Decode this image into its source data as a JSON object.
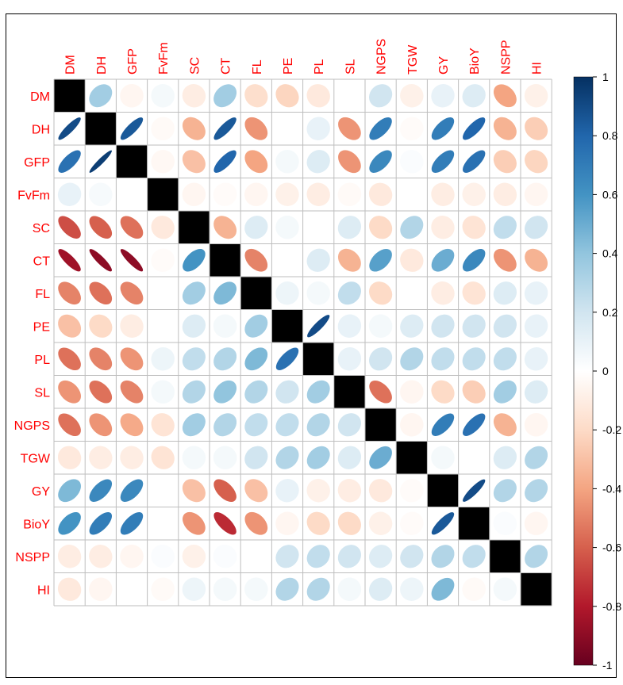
{
  "chart_data": {
    "type": "heatmap",
    "variables": [
      "DM",
      "DH",
      "GFP",
      "FvFm",
      "SC",
      "CT",
      "FL",
      "PE",
      "PL",
      "SL",
      "NGPS",
      "TGW",
      "GY",
      "BioY",
      "NSPP",
      "HI"
    ],
    "matrix": [
      [
        1,
        0.35,
        -0.05,
        0.05,
        -0.1,
        0.35,
        -0.18,
        -0.22,
        -0.12,
        0,
        0.2,
        -0.08,
        0.1,
        0.15,
        -0.4,
        -0.08
      ],
      [
        0.9,
        1,
        0.85,
        -0.03,
        -0.35,
        0.85,
        -0.45,
        0,
        0.1,
        -0.45,
        0.7,
        -0.02,
        0.7,
        0.8,
        -0.35,
        -0.25
      ],
      [
        0.75,
        0.95,
        1,
        -0.04,
        -0.3,
        0.8,
        -0.4,
        0.05,
        0.15,
        -0.45,
        0.65,
        0.02,
        0.7,
        0.75,
        -0.25,
        -0.22
      ],
      [
        0.1,
        0.04,
        0,
        1,
        -0.05,
        -0.02,
        -0.05,
        -0.08,
        -0.1,
        -0.03,
        -0.12,
        0,
        -0.1,
        -0.08,
        -0.1,
        -0.05
      ],
      [
        -0.65,
        -0.6,
        -0.55,
        -0.12,
        1,
        -0.35,
        0.15,
        0.05,
        0,
        0.15,
        -0.2,
        0.3,
        -0.1,
        -0.15,
        0.25,
        0.2
      ],
      [
        -0.85,
        -0.9,
        -0.9,
        -0.02,
        0.6,
        1,
        -0.5,
        0,
        0.15,
        -0.35,
        0.55,
        -0.12,
        0.5,
        0.65,
        -0.45,
        -0.35
      ],
      [
        -0.5,
        -0.55,
        -0.5,
        0,
        0.35,
        0.45,
        1,
        0.08,
        0.05,
        0.25,
        -0.2,
        0,
        -0.1,
        -0.15,
        0.15,
        0.1
      ],
      [
        -0.3,
        -0.2,
        -0.1,
        0,
        0.15,
        0.05,
        0.35,
        1,
        0.9,
        0.1,
        0.05,
        0.15,
        0.2,
        0.2,
        0.2,
        0.1
      ],
      [
        -0.55,
        -0.5,
        -0.45,
        0.08,
        0.25,
        0.3,
        0.45,
        0.75,
        1,
        0.1,
        0.2,
        0.3,
        0.25,
        0.25,
        0.25,
        0.1
      ],
      [
        -0.45,
        -0.55,
        -0.5,
        0.05,
        0.3,
        0.4,
        0.3,
        0.2,
        0.35,
        1,
        -0.55,
        -0.05,
        -0.2,
        -0.25,
        0.35,
        0.15
      ],
      [
        -0.55,
        -0.45,
        -0.38,
        -0.15,
        0.35,
        0.3,
        0.25,
        0.25,
        0.3,
        0.2,
        1,
        -0.05,
        0.7,
        0.75,
        -0.35,
        -0.05
      ],
      [
        -0.12,
        -0.1,
        -0.1,
        -0.15,
        0.05,
        0.05,
        0.2,
        0.3,
        0.35,
        0.15,
        0.5,
        1,
        0.05,
        0,
        0.15,
        0.3
      ],
      [
        0.45,
        0.65,
        0.65,
        0,
        -0.3,
        -0.6,
        -0.3,
        0.1,
        -0.08,
        -0.1,
        -0.12,
        -0.02,
        1,
        0.9,
        0.3,
        0.3
      ],
      [
        0.6,
        0.7,
        0.7,
        0,
        -0.45,
        -0.75,
        -0.45,
        -0.05,
        -0.2,
        -0.2,
        -0.08,
        -0.02,
        0.85,
        1,
        0.02,
        -0.05
      ],
      [
        -0.1,
        -0.1,
        -0.05,
        0.02,
        -0.08,
        0.02,
        0,
        0.2,
        0.25,
        0.2,
        0.15,
        0.2,
        0.3,
        0.25,
        1,
        0.3
      ],
      [
        -0.12,
        -0.05,
        0,
        -0.03,
        0.08,
        0.05,
        0.05,
        0.3,
        0.3,
        0.05,
        0.15,
        0.08,
        0.45,
        -0.03,
        0.05,
        1
      ]
    ],
    "colorbar": {
      "ticks": [
        "1",
        "0.8",
        "0.6",
        "0.4",
        "0.2",
        "0",
        "-0.2",
        "-0.4",
        "-0.6",
        "-0.8",
        "-1"
      ],
      "range": [
        -1,
        1
      ]
    },
    "colors": {
      "label": "#ff0000",
      "grid": "#bebebe",
      "diagonal": "#000000",
      "palette": [
        "#67001f",
        "#b2182b",
        "#d6604d",
        "#f4a582",
        "#fddbc7",
        "#ffffff",
        "#d1e5f0",
        "#92c5de",
        "#4393c3",
        "#2166ac",
        "#053061"
      ]
    }
  }
}
